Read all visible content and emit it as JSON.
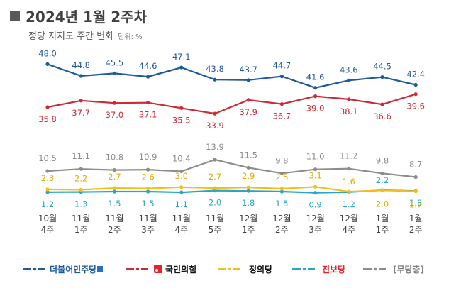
{
  "header": {
    "title": "2024년 1월 2주차",
    "subtitle": "정당 지지도 주간 변화",
    "unit": "단위: %"
  },
  "chart_data": {
    "type": "line",
    "title": "2024년 1월 2주차 정당 지지도 주간 변화",
    "unit": "%",
    "categories": [
      "10월 4주",
      "11월 1주",
      "11월 2주",
      "11월 3주",
      "11월 4주",
      "11월 5주",
      "12월 1주",
      "12월 2주",
      "12월 3주",
      "12월 4주",
      "1월 1주",
      "1월 2주"
    ],
    "category_lines": [
      [
        "10월",
        "4주"
      ],
      [
        "11월",
        "1주"
      ],
      [
        "11월",
        "2주"
      ],
      [
        "11월",
        "3주"
      ],
      [
        "11월",
        "4주"
      ],
      [
        "11월",
        "5주"
      ],
      [
        "12월",
        "1주"
      ],
      [
        "12월",
        "2주"
      ],
      [
        "12월",
        "3주"
      ],
      [
        "12월",
        "4주"
      ],
      [
        "1월",
        "1주"
      ],
      [
        "1월",
        "2주"
      ]
    ],
    "series": [
      {
        "name": "더불어민주당",
        "key": "dem",
        "color": "#1f5b9a",
        "values": [
          48.0,
          44.8,
          45.5,
          44.6,
          47.1,
          43.8,
          43.7,
          44.7,
          41.6,
          43.6,
          44.5,
          42.4
        ]
      },
      {
        "name": "국민의힘",
        "key": "ppp",
        "color": "#cc2a36",
        "values": [
          35.8,
          37.7,
          37.0,
          37.1,
          35.5,
          33.9,
          37.9,
          36.7,
          39.0,
          38.1,
          36.6,
          39.6
        ]
      },
      {
        "name": "[무당층]",
        "key": "none",
        "color": "#8c8c8c",
        "values": [
          10.5,
          11.1,
          10.8,
          10.9,
          10.4,
          13.9,
          11.5,
          9.8,
          11.0,
          11.2,
          9.8,
          8.7
        ]
      },
      {
        "name": "정의당",
        "key": "justice",
        "color": "#f2bf1a",
        "values": [
          2.3,
          2.2,
          2.7,
          2.6,
          3.0,
          2.7,
          2.9,
          2.5,
          3.1,
          1.6,
          2.0,
          1.7
        ]
      },
      {
        "name": "진보당",
        "key": "progressive",
        "color": "#26a5c9",
        "values": [
          1.2,
          1.3,
          1.5,
          1.5,
          1.1,
          2.0,
          1.8,
          1.5,
          0.9,
          1.2,
          2.2,
          1.8
        ]
      }
    ],
    "ylim": [
      0,
      50
    ],
    "xlabel": "",
    "ylabel": "",
    "grid": false,
    "legend_position": "bottom"
  },
  "legend": [
    {
      "key": "dem",
      "label": "더불어민주당",
      "color": "#1f5b9a",
      "line_color": "#1f5b9a"
    },
    {
      "key": "ppp",
      "label": "국민의힘",
      "color": "#111111",
      "line_color": "#cc2a36",
      "badge_color": "#e3242b"
    },
    {
      "key": "justice",
      "label": "정의당",
      "color": "#111111",
      "line_color": "#f2bf1a"
    },
    {
      "key": "progressive",
      "label": "진보당",
      "color": "#e3242b",
      "line_color": "#26a5c9"
    },
    {
      "key": "none",
      "label": "[무당층]",
      "color": "#7f7f7f",
      "line_color": "#8c8c8c"
    }
  ]
}
